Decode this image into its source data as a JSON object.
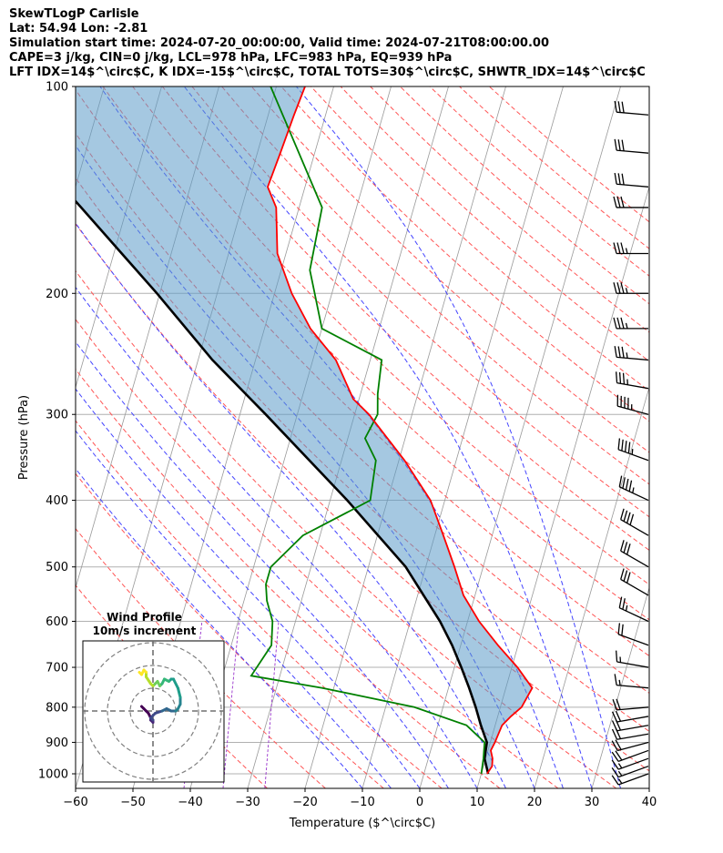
{
  "header": {
    "line1": "SkewTLogP Carlisle",
    "line2": "Lat: 54.94   Lon: -2.81",
    "line3": "Simulation start time: 2024-07-20_00:00:00, Valid time: 2024-07-21T08:00:00.00",
    "line4": "CAPE=3 j/kg, CIN=0 j/kg, LCL=978 hPa, LFC=983 hPa, EQ=939 hPa",
    "line5": "LFT IDX=14$^\\circ$C, K IDX=-15$^\\circ$C, TOTAL TOTS=30$^\\circ$C, SHWTR_IDX=14$^\\circ$C"
  },
  "chart_data": [
    {
      "type": "line",
      "subtype": "skew-t log-p",
      "xlabel": "Temperature ($^\\circ$C)",
      "ylabel": "Pressure (hPa)",
      "xlim": [
        -60,
        40
      ],
      "ylim": [
        1050,
        100
      ],
      "y_scale": "log",
      "x_ticks": [
        "−60",
        "−50",
        "−40",
        "−30",
        "−20",
        "−10",
        "0",
        "10",
        "20",
        "30",
        "40"
      ],
      "y_ticks": [
        "100",
        "200",
        "300",
        "400",
        "500",
        "600",
        "700",
        "800",
        "900",
        "1000"
      ],
      "grid": true,
      "colors": {
        "temperature": "#ff0000",
        "dewpoint": "#008000",
        "parcel": "#000000",
        "cape_fill": "#5b9bc8",
        "dry_adiabats": "#ff5555",
        "moist_adiabats": "#4444ff",
        "mixing_ratio": "#9933cc",
        "isotherms": "#999999"
      },
      "series": [
        {
          "role": "temperature",
          "pressure": [
            1000,
            975,
            950,
            925,
            900,
            875,
            850,
            825,
            800,
            750,
            700,
            650,
            600,
            550,
            500,
            450,
            400,
            350,
            300,
            285,
            250,
            225,
            200,
            175,
            150,
            140,
            125,
            110,
            100
          ],
          "temperature": [
            11,
            11.5,
            11.2,
            10.5,
            10.8,
            11,
            11.2,
            12.3,
            13.7,
            14.6,
            11,
            6.5,
            2,
            -2,
            -5,
            -8.5,
            -12.5,
            -19,
            -27.5,
            -31,
            -36,
            -42,
            -47,
            -51.5,
            -54,
            -56.5,
            -56,
            -55.5,
            -55
          ]
        },
        {
          "role": "dewpoint",
          "pressure": [
            1000,
            975,
            950,
            925,
            900,
            850,
            800,
            750,
            720,
            650,
            600,
            560,
            530,
            500,
            450,
            400,
            350,
            325,
            300,
            280,
            250,
            225,
            200,
            185,
            150,
            100
          ],
          "temperature": [
            10,
            9.8,
            9.6,
            9.3,
            9,
            5,
            -5,
            -22,
            -35,
            -33,
            -34,
            -36,
            -37,
            -37,
            -33,
            -23,
            -24,
            -27,
            -26,
            -27,
            -28,
            -40,
            -43,
            -45,
            -46,
            -61
          ]
        },
        {
          "role": "parcel",
          "pressure": [
            1000,
            950,
            900,
            850,
            800,
            750,
            700,
            650,
            600,
            500,
            400,
            300,
            250,
            200,
            150,
            100
          ],
          "temperature": [
            11.2,
            9.8,
            9.4,
            7.5,
            5.7,
            3.6,
            1.2,
            -1.5,
            -4.8,
            -13.5,
            -27,
            -45.5,
            -57.5,
            -70.5,
            -88,
            -113
          ]
        }
      ],
      "wind_barbs": {
        "side": "right",
        "pressure": [
          1000,
          975,
          950,
          925,
          900,
          875,
          850,
          825,
          800,
          750,
          700,
          650,
          600,
          550,
          500,
          450,
          400,
          350,
          300,
          275,
          250,
          225,
          200,
          175,
          150,
          140,
          125,
          110
        ],
        "speed_kt": [
          15,
          15,
          15,
          20,
          20,
          20,
          20,
          20,
          20,
          15,
          15,
          20,
          25,
          30,
          30,
          40,
          45,
          45,
          45,
          35,
          35,
          35,
          35,
          35,
          30,
          30,
          30,
          30
        ],
        "direction_deg": [
          250,
          250,
          250,
          250,
          255,
          260,
          260,
          260,
          265,
          275,
          280,
          290,
          295,
          300,
          300,
          300,
          295,
          290,
          285,
          280,
          275,
          270,
          270,
          270,
          270,
          275,
          275,
          275
        ]
      }
    },
    {
      "type": "line",
      "subtype": "hodograph",
      "title": "Wind Profile",
      "subtitle": "10m/s increment",
      "rings_ms": [
        10,
        20,
        30
      ],
      "grid": true,
      "u": [
        -5,
        -4,
        -3,
        -2,
        -1,
        -1,
        0,
        0,
        -1,
        1,
        4,
        6,
        8,
        10,
        11,
        12,
        12,
        11,
        9,
        8,
        7,
        5,
        4,
        3,
        2,
        1,
        0,
        -1,
        -3,
        -3,
        -4,
        -5,
        -6
      ],
      "v": [
        2,
        1,
        0,
        -1,
        -3,
        -4,
        -5,
        -4,
        -3,
        -1,
        0,
        1,
        0,
        0,
        1,
        3,
        6,
        10,
        14,
        14,
        13,
        14,
        12,
        11,
        13,
        12,
        11,
        12,
        15,
        17,
        18,
        16,
        17
      ],
      "color_scale": "viridis (low to high altitude: dark purple to yellow)"
    }
  ]
}
